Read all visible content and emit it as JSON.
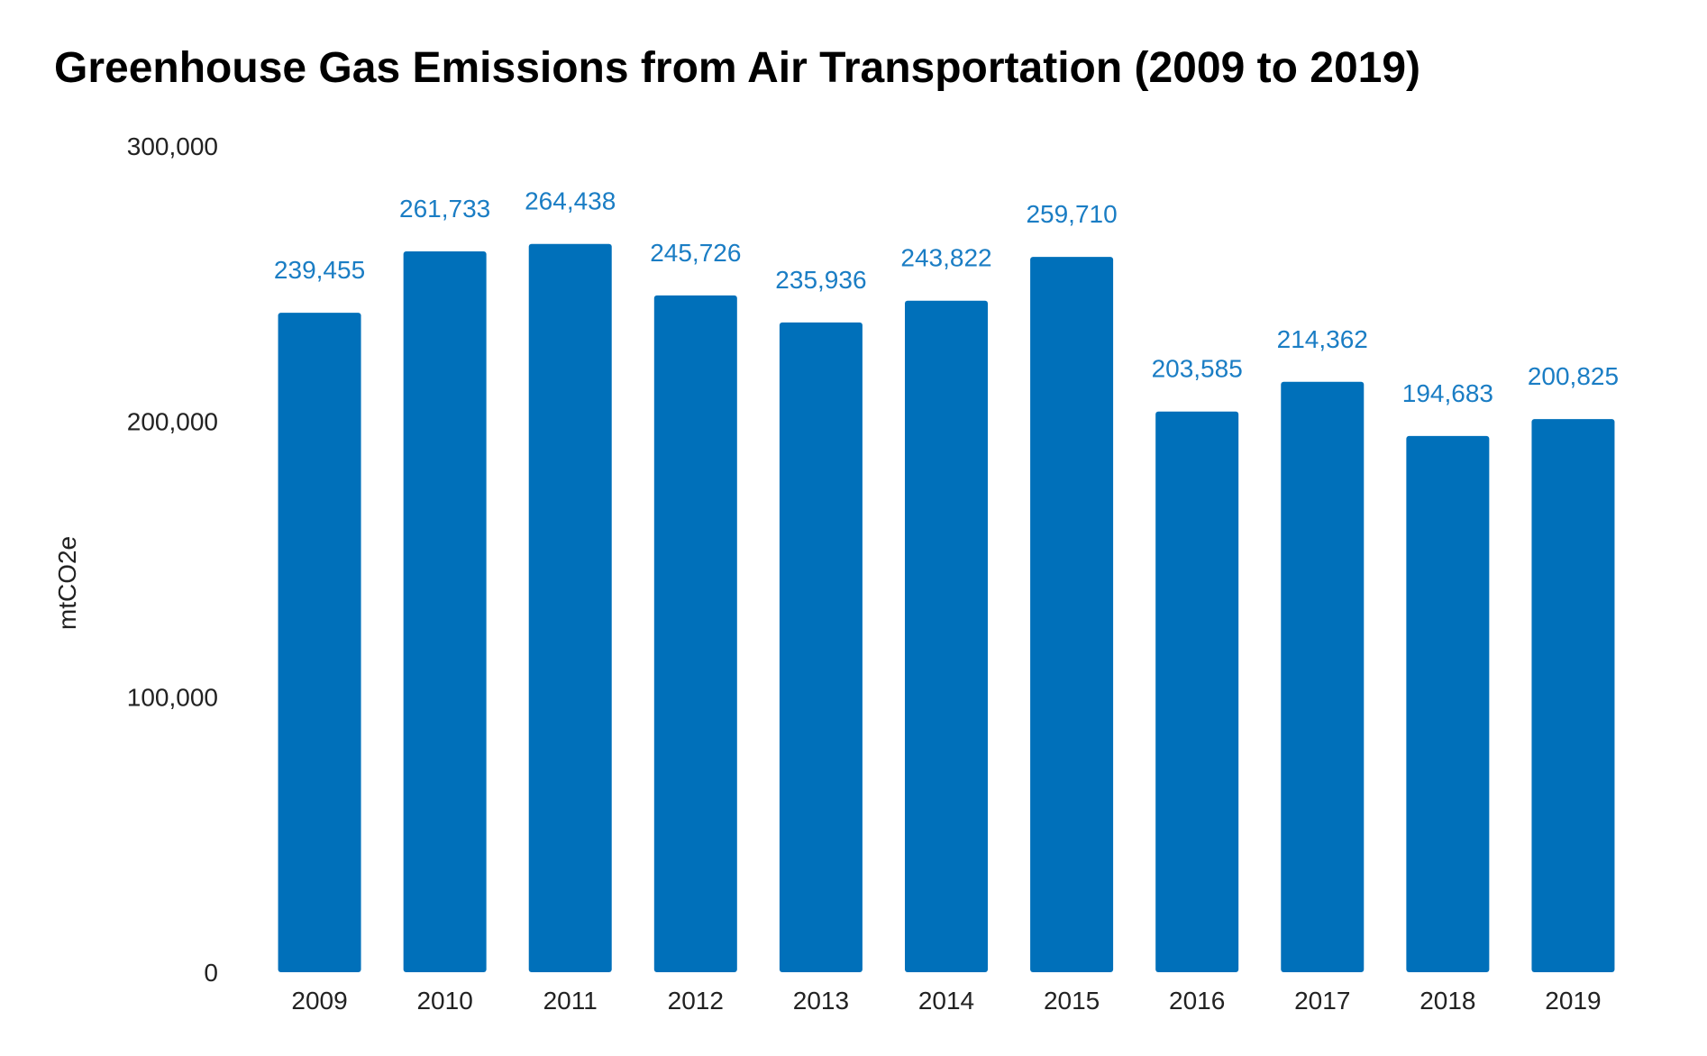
{
  "chart_data": {
    "type": "bar",
    "title": "Greenhouse Gas Emissions from Air Transportation (2009 to 2019)",
    "xlabel": "",
    "ylabel": "mtCO2e",
    "ylim": [
      0,
      300000
    ],
    "yticks": [
      0,
      100000,
      200000,
      300000
    ],
    "ytick_labels": [
      "0",
      "100,000",
      "200,000",
      "300,000"
    ],
    "grid": false,
    "legend": "none",
    "bar_color": "#0070BA",
    "label_color": "#1A7DC4",
    "categories": [
      "2009",
      "2010",
      "2011",
      "2012",
      "2013",
      "2014",
      "2015",
      "2016",
      "2017",
      "2018",
      "2019"
    ],
    "values": [
      239455,
      261733,
      264438,
      245726,
      235936,
      243822,
      259710,
      203585,
      214362,
      194683,
      200825
    ],
    "value_labels": [
      "239,455",
      "261,733",
      "264,438",
      "245,726",
      "235,936",
      "243,822",
      "259,710",
      "203,585",
      "214,362",
      "194,683",
      "200,825"
    ]
  }
}
